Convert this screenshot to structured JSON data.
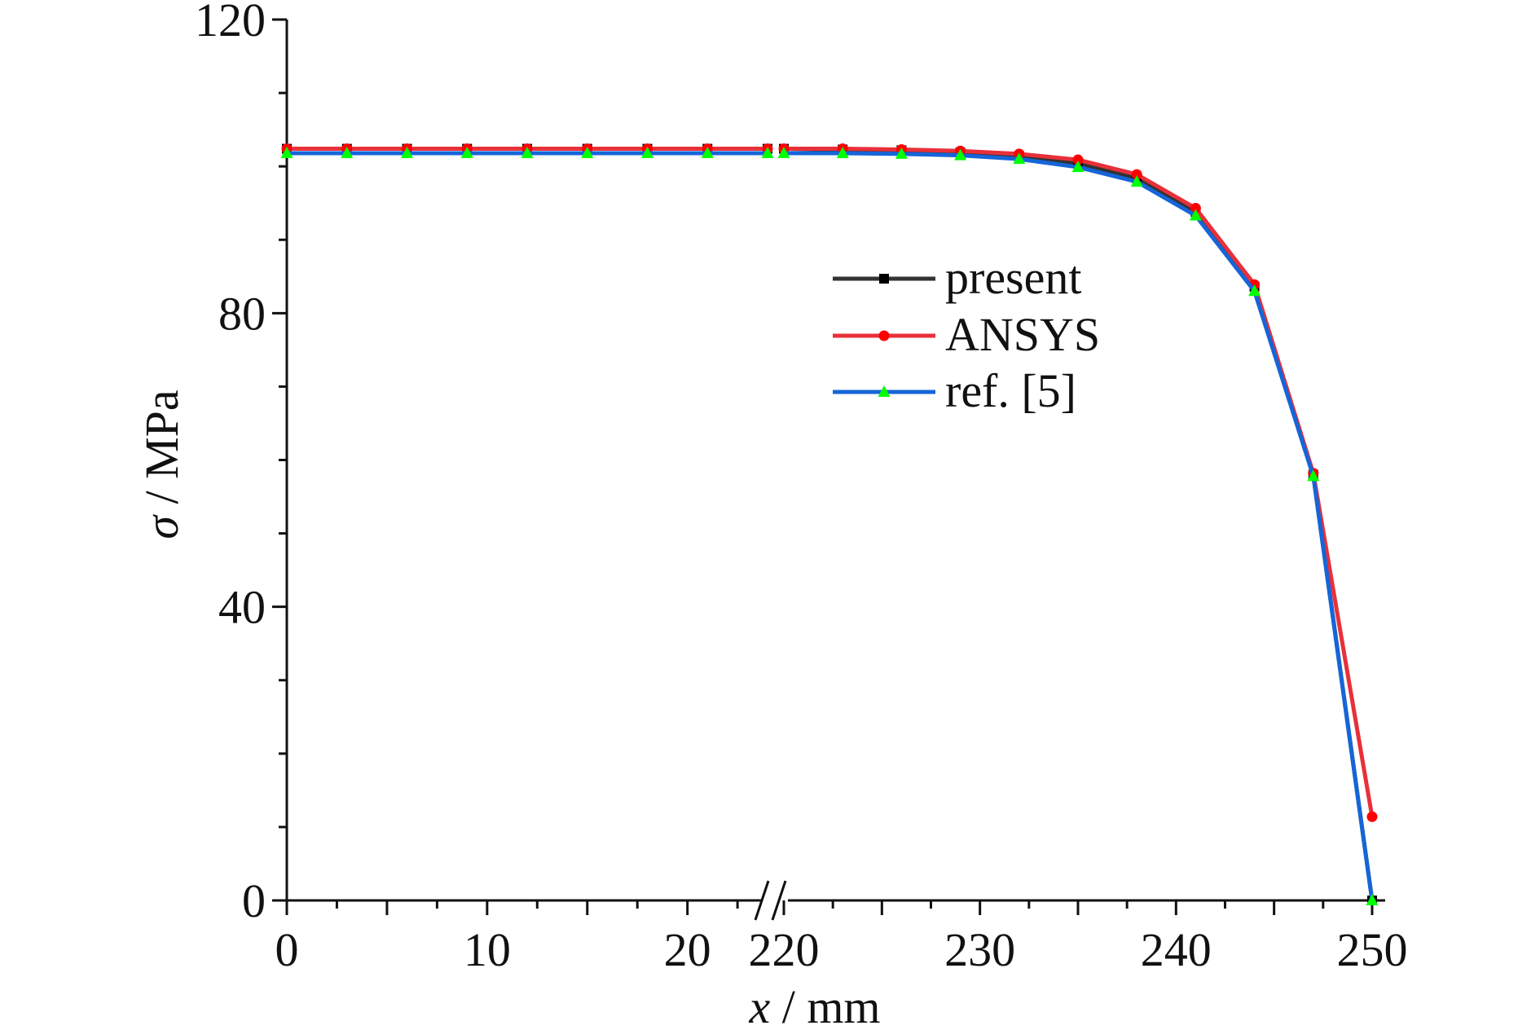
{
  "chart_data": {
    "type": "line",
    "xlabel_var": "x",
    "xlabel_unit": " / mm",
    "ylabel_var": "σ",
    "ylabel_unit": " / MPa",
    "ylim": [
      0,
      120
    ],
    "y_ticks": [
      0,
      40,
      80,
      120
    ],
    "x_segments": [
      {
        "range": [
          0,
          24
        ],
        "ticks": [
          0,
          10,
          20
        ]
      },
      {
        "range": [
          220,
          250.5
        ],
        "ticks": [
          220,
          230,
          240,
          250
        ]
      }
    ],
    "axis_break_between": [
      24,
      220
    ],
    "legend_position": "center-right",
    "series": [
      {
        "name": "present",
        "color": "#333333",
        "marker": "square",
        "marker_color": "#000000",
        "x": [
          0,
          3,
          6,
          9,
          12,
          15,
          18,
          21,
          24,
          220,
          223,
          226,
          229,
          232,
          235,
          238,
          241,
          244,
          247,
          250
        ],
        "y": [
          102.4,
          102.4,
          102.4,
          102.4,
          102.4,
          102.4,
          102.4,
          102.4,
          102.4,
          102.4,
          102.3,
          102.2,
          101.9,
          101.4,
          100.4,
          98.4,
          93.8,
          83.6,
          58.0,
          0.0
        ]
      },
      {
        "name": "ANSYS",
        "color": "#e8303a",
        "marker": "circle",
        "marker_color": "#ff0000",
        "x": [
          0,
          3,
          6,
          9,
          12,
          15,
          18,
          21,
          24,
          220,
          223,
          226,
          229,
          232,
          235,
          238,
          241,
          244,
          247,
          250
        ],
        "y": [
          102.4,
          102.4,
          102.4,
          102.4,
          102.4,
          102.4,
          102.4,
          102.4,
          102.4,
          102.4,
          102.4,
          102.3,
          102.1,
          101.7,
          100.9,
          98.9,
          94.3,
          83.9,
          58.2,
          11.4
        ]
      },
      {
        "name": "ref. [5]",
        "color": "#1565d8",
        "marker": "triangle",
        "marker_color": "#00ff00",
        "x": [
          0,
          3,
          6,
          9,
          12,
          15,
          18,
          21,
          24,
          220,
          223,
          226,
          229,
          232,
          235,
          238,
          241,
          244,
          247,
          250
        ],
        "y": [
          101.8,
          101.8,
          101.8,
          101.8,
          101.8,
          101.8,
          101.8,
          101.8,
          101.8,
          101.8,
          101.8,
          101.7,
          101.5,
          101.0,
          99.9,
          97.9,
          93.3,
          83.0,
          57.8,
          0.0
        ]
      }
    ]
  }
}
